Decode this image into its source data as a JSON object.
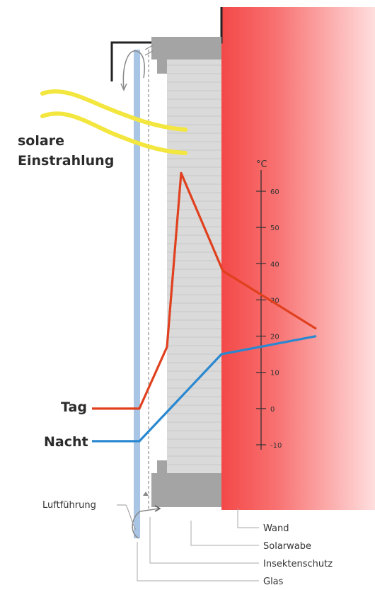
{
  "labels": {
    "solar_line1": "solare",
    "solar_line2": "Einstrahlung",
    "day": "Tag",
    "night": "Nacht",
    "unit": "°C",
    "airflow": "Luftführung"
  },
  "scale_ticks": [
    "60",
    "50",
    "40",
    "30",
    "20",
    "10",
    "0",
    "-10"
  ],
  "legend": [
    "Wand",
    "Solarwabe",
    "Insektenschutz",
    "Glas"
  ],
  "colors": {
    "wall": "#f86060",
    "honeycomb": "#d9d9d9",
    "glass": "#a8c4e4",
    "day_curve": "#e0401e",
    "night_curve": "#2a88d0",
    "sun_rays": "#f5e43a"
  },
  "chart_data": {
    "type": "line",
    "y_unit": "°C",
    "ylim": [
      -10,
      65
    ],
    "series": [
      {
        "name": "Tag",
        "values": [
          0,
          0,
          17,
          65,
          38,
          22
        ]
      },
      {
        "name": "Nacht",
        "values": [
          -9,
          -9,
          15,
          20
        ]
      }
    ]
  }
}
